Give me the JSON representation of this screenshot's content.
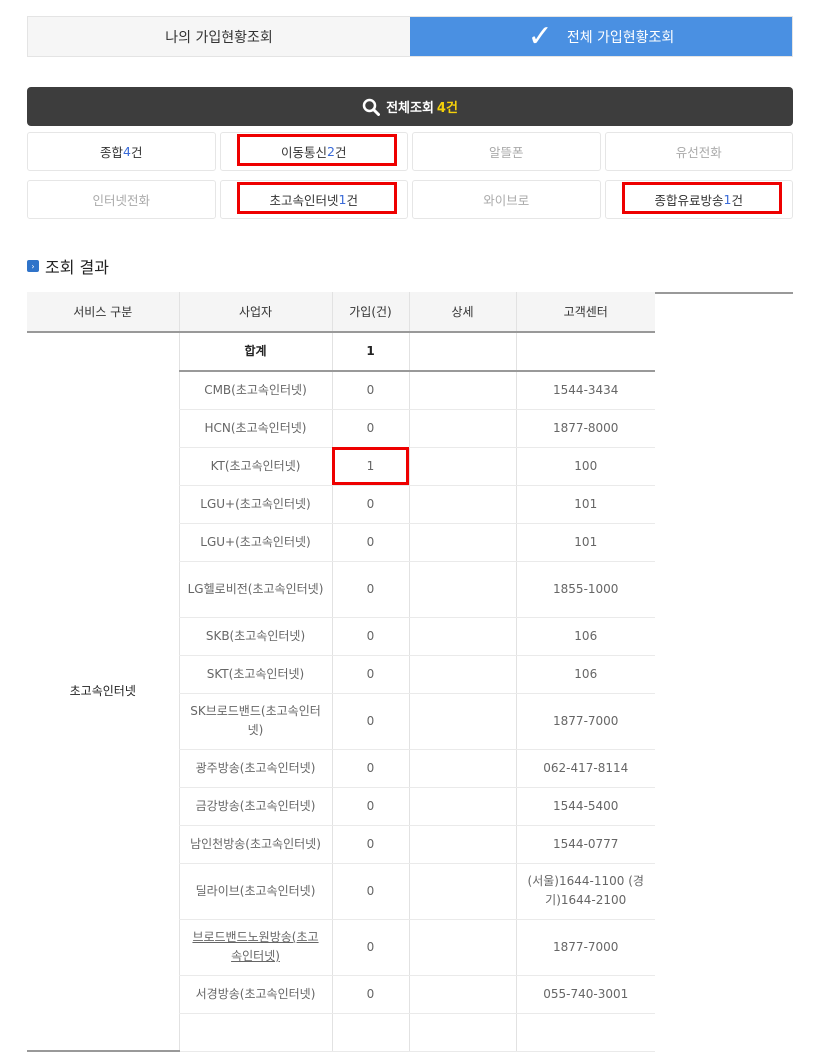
{
  "tabs": [
    {
      "label": "나의 가입현황조회",
      "active": false
    },
    {
      "label": "전체 가입현황조회",
      "active": true
    }
  ],
  "all_query": {
    "label": "전체조회",
    "count": "4건"
  },
  "filters": [
    {
      "label": "종합",
      "count": "4",
      "suffix": "건",
      "dim": false,
      "highlighted": false
    },
    {
      "label": "이동통신",
      "count": "2",
      "suffix": " 건",
      "dim": false,
      "highlighted": true
    },
    {
      "label": "알뜰폰",
      "count": "",
      "suffix": "",
      "dim": true,
      "highlighted": false
    },
    {
      "label": "유선전화",
      "count": "",
      "suffix": "",
      "dim": true,
      "highlighted": false
    },
    {
      "label": "인터넷전화",
      "count": "",
      "suffix": "",
      "dim": true,
      "highlighted": false
    },
    {
      "label": "초고속인터넷",
      "count": "1",
      "suffix": " 건",
      "dim": false,
      "highlighted": true
    },
    {
      "label": "와이브로",
      "count": "",
      "suffix": "",
      "dim": true,
      "highlighted": false
    },
    {
      "label": "종합유료방송",
      "count": "1",
      "suffix": " 건",
      "dim": false,
      "highlighted": true
    }
  ],
  "section_title": "조회 결과",
  "table": {
    "headers": [
      "서비스 구분",
      "사업자",
      "가입(건)",
      "상세",
      "고객센터"
    ],
    "service": "초고속인터넷",
    "total": {
      "label": "합계",
      "count": "1"
    },
    "rows": [
      {
        "provider": "CMB(초고속인터넷)",
        "count": "0",
        "center": "1544-3434"
      },
      {
        "provider": "HCN(초고속인터넷)",
        "count": "0",
        "center": "1877-8000"
      },
      {
        "provider": "KT(초고속인터넷)",
        "count": "1",
        "center": "100",
        "highlighted": true
      },
      {
        "provider": "LGU+(초고속인터넷)",
        "count": "0",
        "center": "101"
      },
      {
        "provider": "LGU+(초고속인터넷)",
        "count": "0",
        "center": "101"
      },
      {
        "provider": "LG헬로비전(초고속인터넷)",
        "count": "0",
        "center": "1855-1000",
        "tall": true
      },
      {
        "provider": "SKB(초고속인터넷)",
        "count": "0",
        "center": "106"
      },
      {
        "provider": "SKT(초고속인터넷)",
        "count": "0",
        "center": "106"
      },
      {
        "provider": "SK브로드밴드(초고속인터넷)",
        "count": "0",
        "center": "1877-7000",
        "tall": true
      },
      {
        "provider": "광주방송(초고속인터넷)",
        "count": "0",
        "center": "062-417-8114"
      },
      {
        "provider": "금강방송(초고속인터넷)",
        "count": "0",
        "center": "1544-5400"
      },
      {
        "provider": "남인천방송(초고속인터넷)",
        "count": "0",
        "center": "1544-0777"
      },
      {
        "provider": "딜라이브(초고속인터넷)",
        "count": "0",
        "center": "(서울)1644-1100 (경기)1644-2100",
        "tall": true
      },
      {
        "provider": "브로드밴드노원방송(초고속인터넷)",
        "count": "0",
        "center": "1877-7000",
        "tall": true,
        "link": true
      },
      {
        "provider": "서경방송(초고속인터넷)",
        "count": "0",
        "center": "055-740-3001"
      },
      {
        "provider": "",
        "count": "",
        "center": ""
      }
    ]
  }
}
